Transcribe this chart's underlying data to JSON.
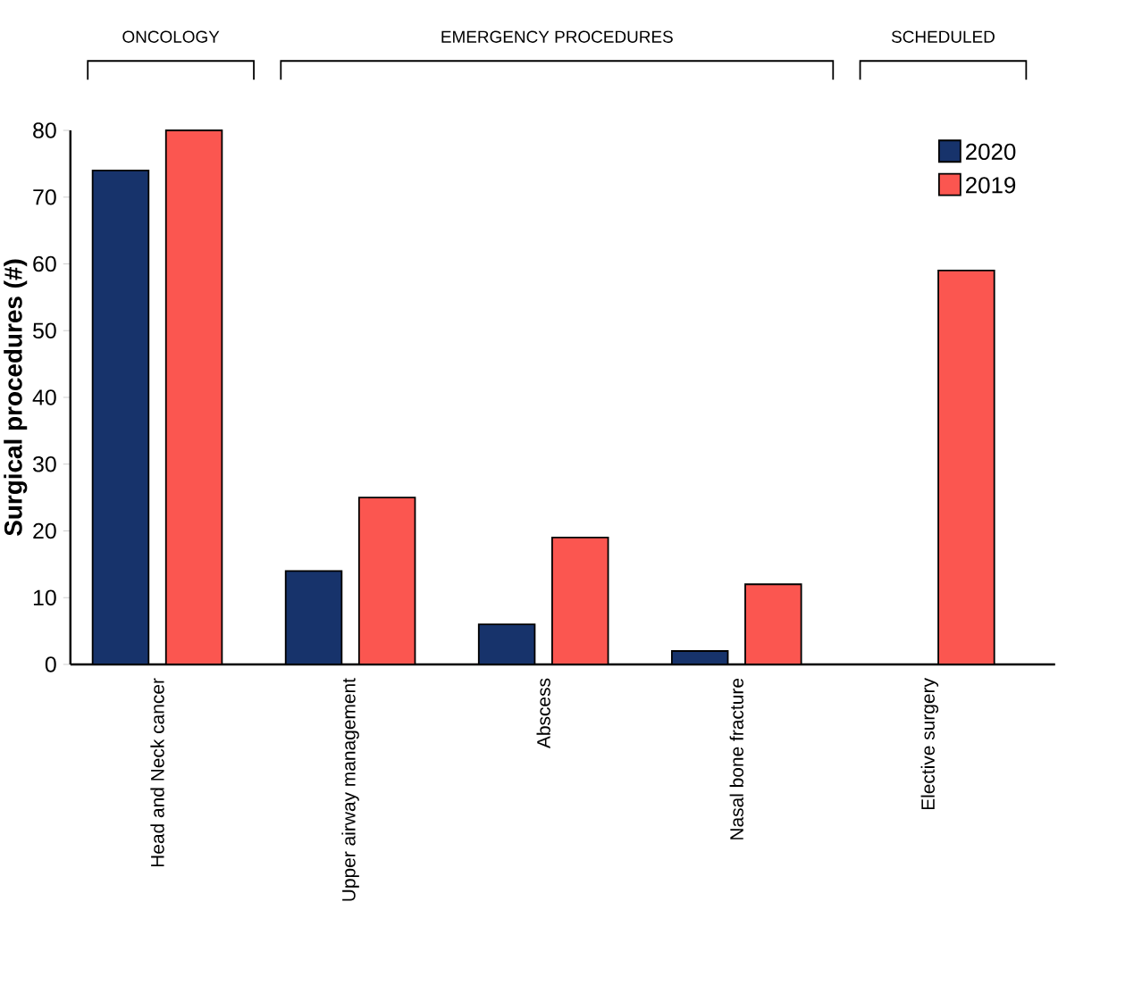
{
  "chart_data": {
    "type": "bar",
    "ylabel": "Surgical procedures (#)",
    "categories": [
      "Head and Neck cancer",
      "Upper airway management",
      "Abscess",
      "Nasal bone fracture",
      "Elective surgery"
    ],
    "series": [
      {
        "name": "2020",
        "color": "#17336b",
        "values": [
          74,
          14,
          6,
          2,
          null
        ]
      },
      {
        "name": "2019",
        "color": "#fb5650",
        "values": [
          80,
          25,
          19,
          12,
          59
        ]
      }
    ],
    "ylim": [
      0,
      80
    ],
    "yticks": [
      0,
      10,
      20,
      30,
      40,
      50,
      60,
      70,
      80
    ],
    "annotations": [
      "ONCOLOGY",
      "EMERGENCY PROCEDURES",
      "SCHEDULED"
    ],
    "legend": "top right"
  }
}
